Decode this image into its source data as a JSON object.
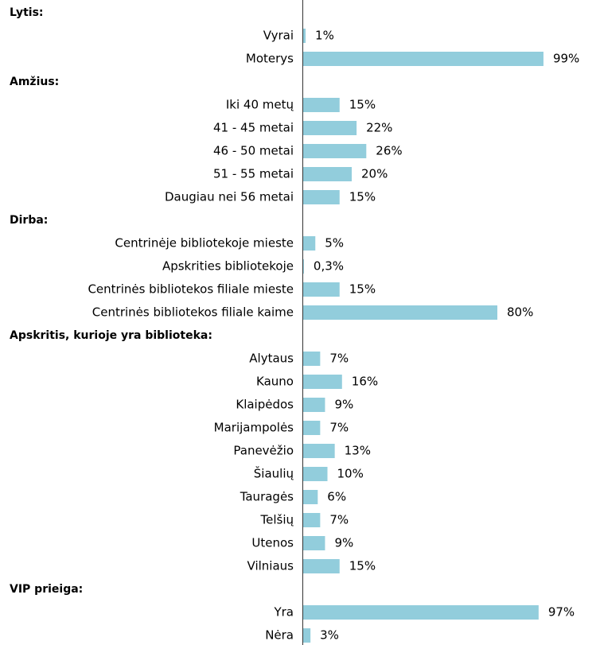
{
  "chart_data": {
    "type": "bar",
    "orientation": "horizontal",
    "color": "#92cddc",
    "xlim": [
      0,
      100
    ],
    "groups": [
      {
        "title": "Lytis:",
        "categories": [
          "Vyrai",
          "Moterys"
        ],
        "values": [
          1,
          99
        ],
        "value_labels": [
          "1%",
          "99%"
        ]
      },
      {
        "title": "Amžius:",
        "categories": [
          "Iki 40 metų",
          "41 - 45 metai",
          "46 - 50 metai",
          "51 - 55 metai",
          "Daugiau nei 56 metai"
        ],
        "values": [
          15,
          22,
          26,
          20,
          15
        ],
        "value_labels": [
          "15%",
          "22%",
          "26%",
          "20%",
          "15%"
        ]
      },
      {
        "title": "Dirba:",
        "categories": [
          "Centrinėje bibliotekoje mieste",
          "Apskrities bibliotekoje",
          "Centrinės bibliotekos filiale mieste",
          "Centrinės bibliotekos filiale kaime"
        ],
        "values": [
          5,
          0.3,
          15,
          80
        ],
        "value_labels": [
          "5%",
          "0,3%",
          "15%",
          "80%"
        ]
      },
      {
        "title": "Apskritis, kurioje yra biblioteka:",
        "categories": [
          "Alytaus",
          "Kauno",
          "Klaipėdos",
          "Marijampolės",
          "Panevėžio",
          "Šiaulių",
          "Tauragės",
          "Telšių",
          "Utenos",
          "Vilniaus"
        ],
        "values": [
          7,
          16,
          9,
          7,
          13,
          10,
          6,
          7,
          9,
          15
        ],
        "value_labels": [
          "7%",
          "16%",
          "9%",
          "7%",
          "13%",
          "10%",
          "6%",
          "7%",
          "9%",
          "15%"
        ]
      },
      {
        "title": "VIP prieiga:",
        "categories": [
          "Yra",
          "Nėra"
        ],
        "values": [
          97,
          3
        ],
        "value_labels": [
          "97%",
          "3%"
        ]
      }
    ]
  }
}
